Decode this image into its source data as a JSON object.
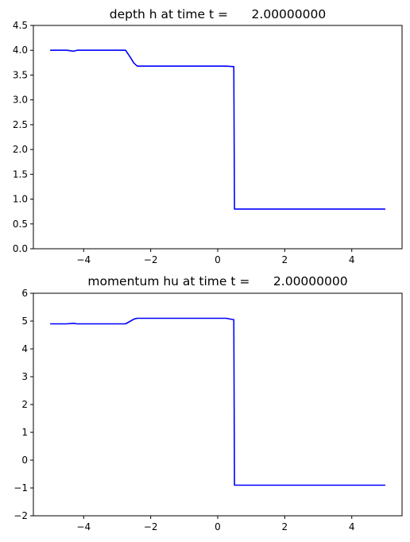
{
  "chart_data": [
    {
      "type": "line",
      "title": "depth h at time t =      2.00000000",
      "xlabel": "",
      "ylabel": "",
      "xlim": [
        -5.5,
        5.5
      ],
      "ylim": [
        0,
        4.5
      ],
      "xticks": [
        -4,
        -2,
        0,
        2,
        4
      ],
      "xtick_labels": [
        "−4",
        "−2",
        "0",
        "2",
        "4"
      ],
      "yticks": [
        0,
        0.5,
        1,
        1.5,
        2,
        2.5,
        3,
        3.5,
        4,
        4.5
      ],
      "ytick_labels": [
        "0.0",
        "0.5",
        "1.0",
        "1.5",
        "2.0",
        "2.5",
        "3.0",
        "3.5",
        "4.0",
        "4.5"
      ],
      "grid": false,
      "color": "#0000ff",
      "series": [
        {
          "x": [
            -5.0,
            -4.5,
            -4.3,
            -4.2,
            -4.0,
            -3.0,
            -2.75,
            -2.6,
            -2.5,
            -2.4,
            -1.5,
            -1.0,
            0.0,
            0.25,
            0.48,
            0.5,
            1.0,
            2.0,
            3.0,
            4.0,
            5.0
          ],
          "y": [
            4.0,
            4.0,
            3.98,
            4.0,
            4.0,
            4.0,
            4.0,
            3.85,
            3.74,
            3.68,
            3.68,
            3.68,
            3.68,
            3.68,
            3.67,
            0.8,
            0.8,
            0.8,
            0.8,
            0.8,
            0.8
          ]
        }
      ]
    },
    {
      "type": "line",
      "title": "momentum hu at time t =      2.00000000",
      "xlabel": "",
      "ylabel": "",
      "xlim": [
        -5.5,
        5.5
      ],
      "ylim": [
        -2,
        6
      ],
      "xticks": [
        -4,
        -2,
        0,
        2,
        4
      ],
      "xtick_labels": [
        "−4",
        "−2",
        "0",
        "2",
        "4"
      ],
      "yticks": [
        -2,
        -1,
        0,
        1,
        2,
        3,
        4,
        5,
        6
      ],
      "ytick_labels": [
        "−2",
        "−1",
        "0",
        "1",
        "2",
        "3",
        "4",
        "5",
        "6"
      ],
      "grid": false,
      "color": "#0000ff",
      "series": [
        {
          "x": [
            -5.0,
            -4.5,
            -4.3,
            -4.2,
            -4.0,
            -3.0,
            -2.75,
            -2.6,
            -2.5,
            -2.4,
            -1.5,
            -1.0,
            0.0,
            0.25,
            0.48,
            0.5,
            1.0,
            2.0,
            3.0,
            4.0,
            5.0
          ],
          "y": [
            4.9,
            4.9,
            4.92,
            4.9,
            4.9,
            4.9,
            4.9,
            5.0,
            5.07,
            5.1,
            5.1,
            5.1,
            5.1,
            5.1,
            5.05,
            -0.9,
            -0.9,
            -0.9,
            -0.9,
            -0.9,
            -0.9
          ]
        }
      ]
    }
  ]
}
